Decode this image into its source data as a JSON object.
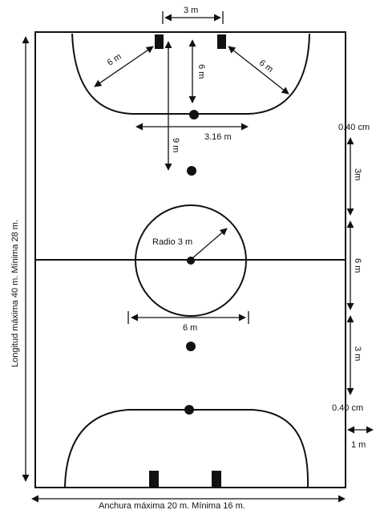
{
  "labels": {
    "goal_width": "3 m",
    "area_radius_left": "6 m",
    "area_radius_right": "6 m",
    "penalty_distance": "6 m",
    "penalty_line": "3.16 m",
    "second_penalty": "9 m",
    "center_radius": "Radio 3 m",
    "center_diameter": "6 m",
    "sub_zone_top": "0.40 cm",
    "sub_zone_bottom": "0.40 cm",
    "zone_3m_top": "3m",
    "zone_6m": "6 m",
    "zone_3m_bottom": "3 m",
    "outside_1m": "1 m",
    "length": "Longitud máxima 40 m. Mínima 28 m.",
    "width": "Anchura máxima 20 m. Mínima 16 m."
  }
}
